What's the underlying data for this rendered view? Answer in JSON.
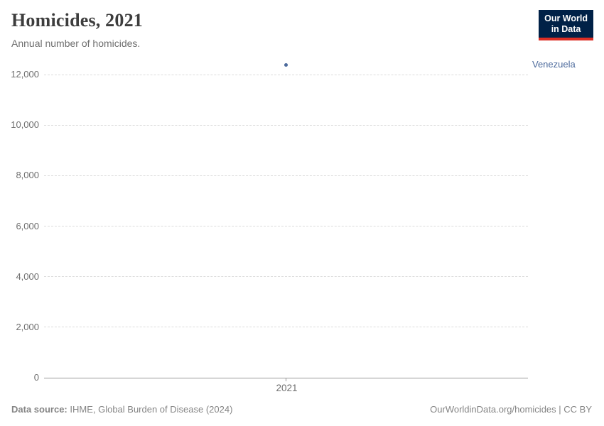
{
  "header": {
    "title": "Homicides, 2021",
    "subtitle": "Annual number of homicides."
  },
  "logo": {
    "line1": "Our World",
    "line2": "in Data",
    "bg_color": "#002147",
    "bar_color": "#dc2e24",
    "text_color": "#ffffff"
  },
  "chart_data": {
    "type": "scatter",
    "title": "Homicides, 2021",
    "subtitle": "Annual number of homicides.",
    "xlabel": "",
    "ylabel": "",
    "grid": "horizontal-dashed",
    "legend_position": "right-of-point",
    "ylim": [
      0,
      12000
    ],
    "y_ticks": [
      {
        "value": 0,
        "label": "0"
      },
      {
        "value": 2000,
        "label": "2,000"
      },
      {
        "value": 4000,
        "label": "4,000"
      },
      {
        "value": 6000,
        "label": "6,000"
      },
      {
        "value": 8000,
        "label": "8,000"
      },
      {
        "value": 10000,
        "label": "10,000"
      },
      {
        "value": 12000,
        "label": "12,000"
      }
    ],
    "x_ticks": [
      {
        "label": "2021",
        "fraction": 0.5
      }
    ],
    "series": [
      {
        "name": "Venezuela",
        "color": "#4c6a9c",
        "x_fraction": 0.5,
        "points": [
          {
            "x": 2021,
            "y": 12390
          }
        ]
      }
    ],
    "colors": {
      "gridline": "#dcdcdc",
      "zero_line": "#999999",
      "tick_label": "#6e6e6e"
    }
  },
  "footer": {
    "source_label": "Data source:",
    "source_text": " IHME, Global Burden of Disease (2024)",
    "link": "OurWorldinData.org/homicides | CC BY"
  }
}
